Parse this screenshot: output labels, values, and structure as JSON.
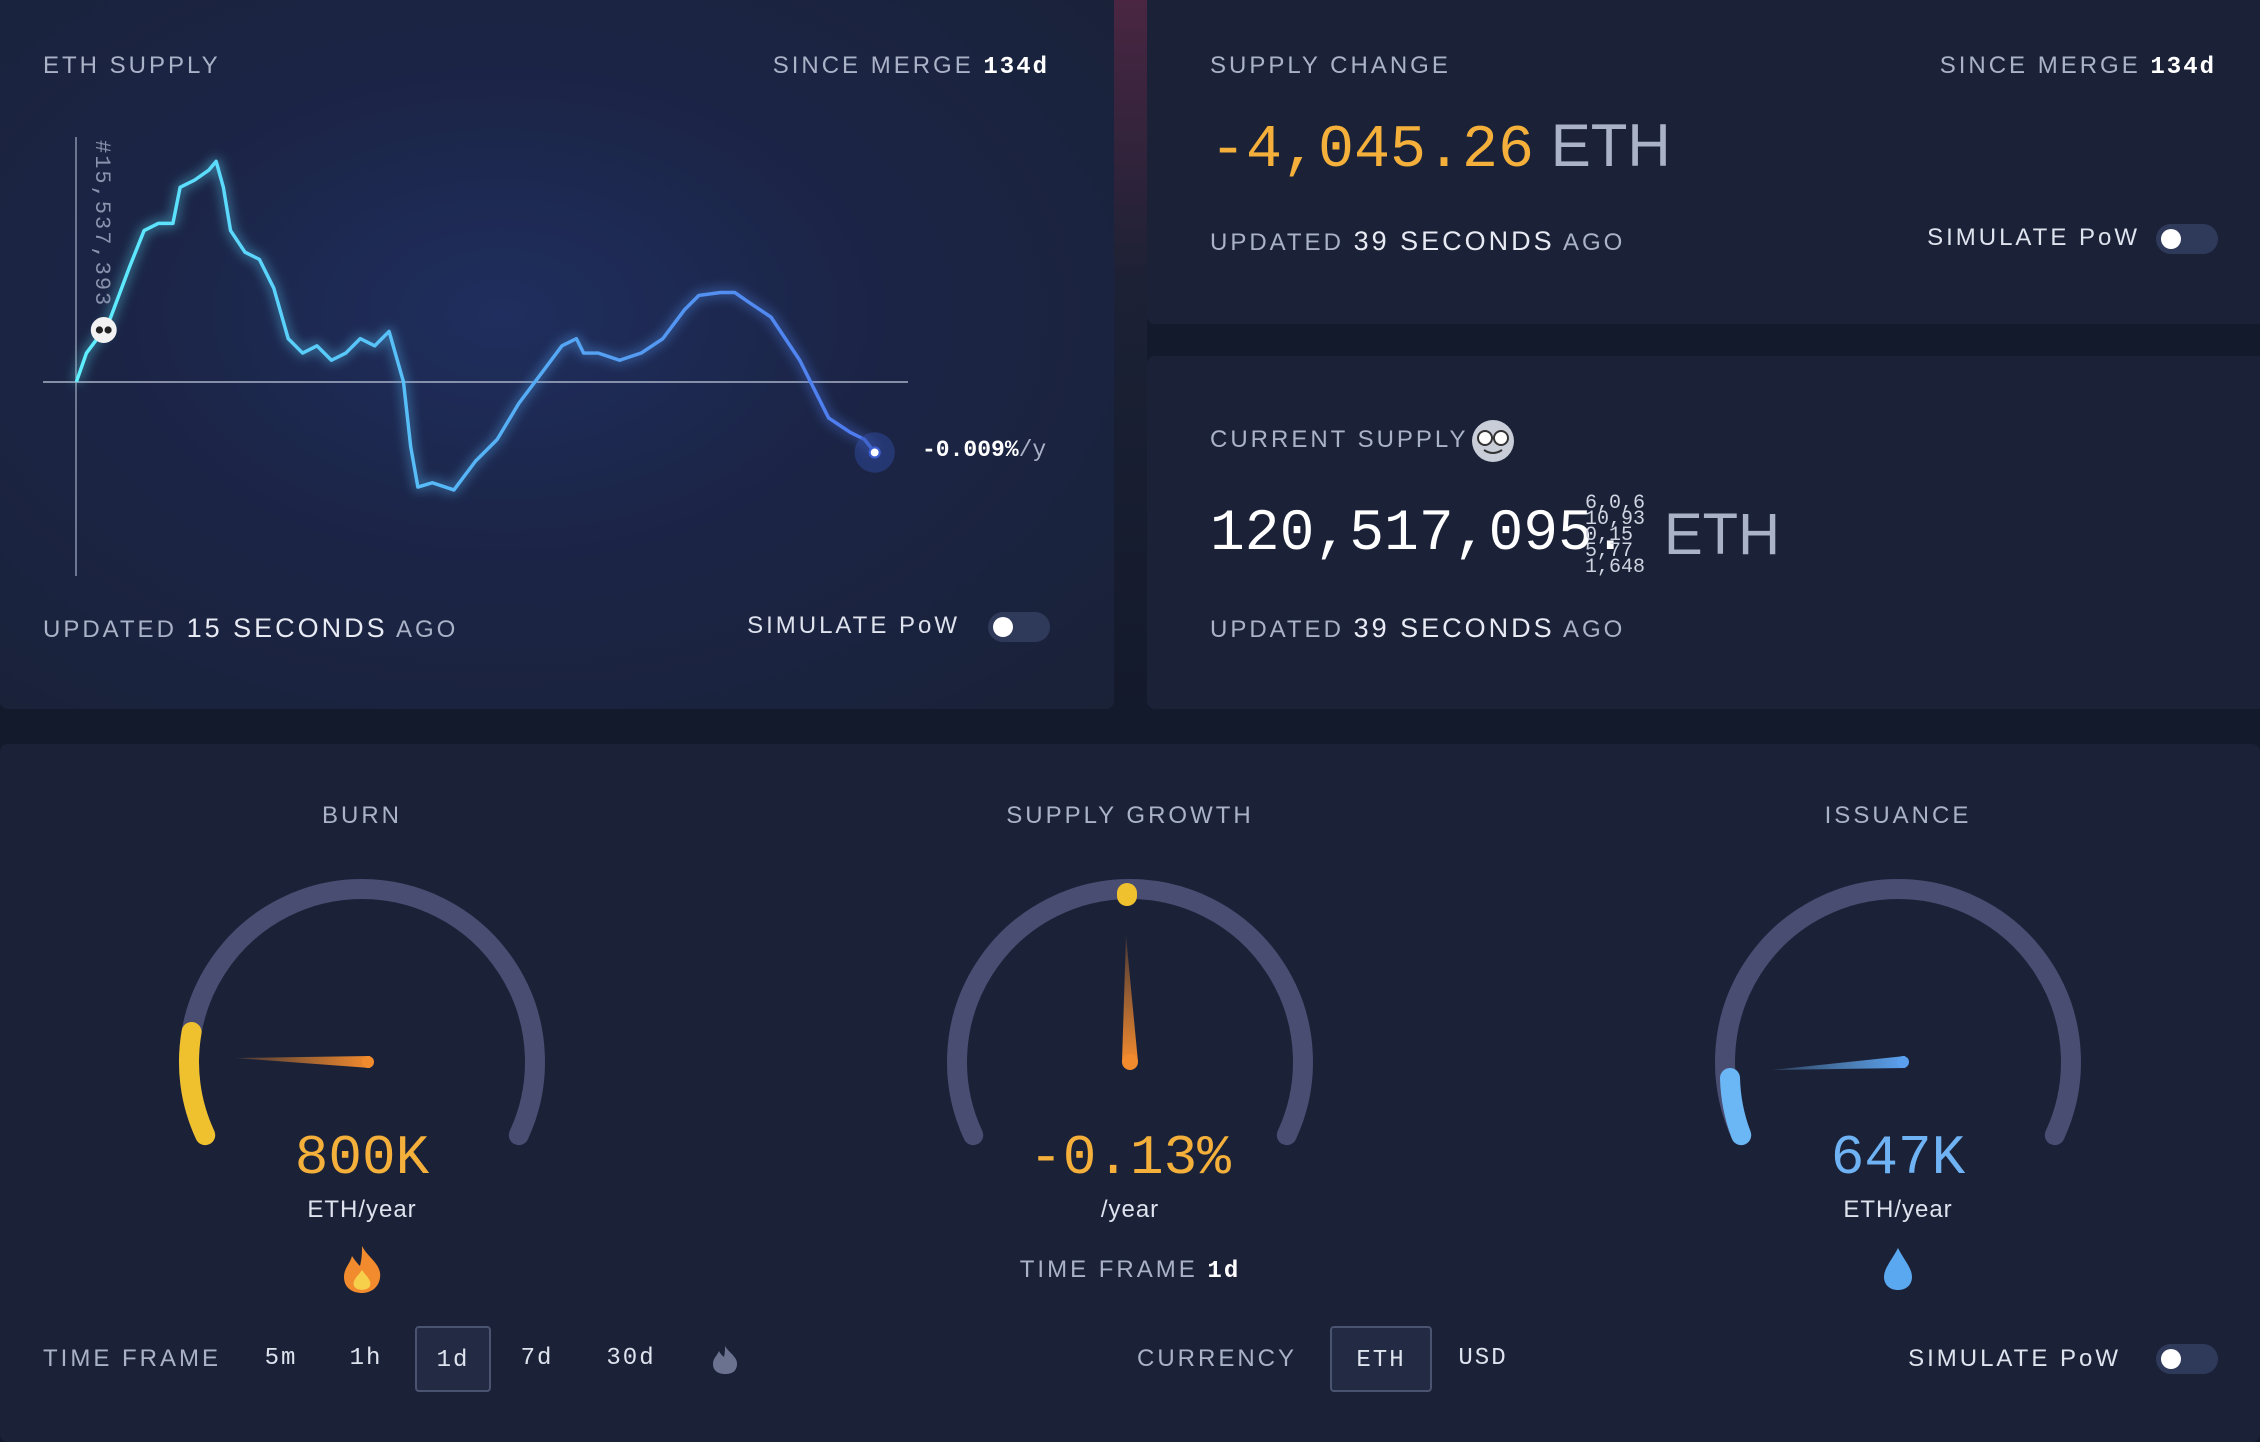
{
  "eth_supply": {
    "title": "ETH SUPPLY",
    "since_label": "SINCE MERGE",
    "since_value": "134d",
    "block_label": "#15,537,393",
    "rate": "-0.009%",
    "rate_unit": "/y",
    "updated_prefix": "UPDATED",
    "updated_value": "15 SECONDS",
    "updated_suffix": "AGO",
    "simulate": "SIMULATE PoW"
  },
  "supply_change": {
    "title": "SUPPLY CHANGE",
    "since_label": "SINCE MERGE",
    "since_value": "134d",
    "value": "-4,045.26",
    "unit": "ETH",
    "updated_prefix": "UPDATED",
    "updated_value": "39 SECONDS",
    "updated_suffix": "AGO",
    "simulate": "SIMULATE PoW"
  },
  "current_supply": {
    "title": "CURRENT SUPPLY",
    "value": "120,517,095.",
    "rolling_digits": [
      "6,0,6",
      "10,93",
      "0,15",
      "5,77",
      "1,648"
    ],
    "unit": "ETH",
    "updated_prefix": "UPDATED",
    "updated_value": "39 SECONDS",
    "updated_suffix": "AGO"
  },
  "gauges": [
    {
      "title": "BURN",
      "value": "800K",
      "unit": "ETH/year"
    },
    {
      "title": "SUPPLY GROWTH",
      "value": "-0.13%",
      "unit": "/year",
      "timeframe_label": "TIME FRAME",
      "timeframe_value": "1d"
    },
    {
      "title": "ISSUANCE",
      "value": "647K",
      "unit": "ETH/year"
    }
  ],
  "controls": {
    "timeframe_label": "TIME FRAME",
    "timeframes": [
      "5m",
      "1h",
      "1d",
      "7d",
      "30d"
    ],
    "currency_label": "CURRENCY",
    "currencies": [
      "ETH",
      "USD"
    ],
    "simulate": "SIMULATE PoW"
  }
}
